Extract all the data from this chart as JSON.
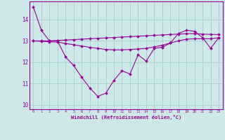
{
  "x": [
    0,
    1,
    2,
    3,
    4,
    5,
    6,
    7,
    8,
    9,
    10,
    11,
    12,
    13,
    14,
    15,
    16,
    17,
    18,
    19,
    20,
    21,
    22,
    23
  ],
  "line1": [
    14.6,
    13.5,
    13.0,
    13.0,
    12.25,
    11.85,
    11.3,
    10.8,
    10.4,
    10.55,
    11.15,
    11.6,
    11.45,
    12.35,
    12.05,
    12.65,
    12.7,
    12.9,
    13.35,
    13.5,
    13.45,
    13.15,
    12.65,
    13.15
  ],
  "line2": [
    13.0,
    13.0,
    13.0,
    13.02,
    13.04,
    13.06,
    13.08,
    13.1,
    13.12,
    13.14,
    13.16,
    13.18,
    13.2,
    13.22,
    13.24,
    13.26,
    13.28,
    13.3,
    13.32,
    13.34,
    13.34,
    13.32,
    13.3,
    13.3
  ],
  "line3": [
    13.0,
    12.98,
    12.96,
    12.94,
    12.88,
    12.82,
    12.76,
    12.7,
    12.65,
    12.6,
    12.58,
    12.58,
    12.6,
    12.62,
    12.65,
    12.72,
    12.8,
    12.9,
    13.0,
    13.08,
    13.1,
    13.1,
    13.1,
    13.15
  ],
  "line_color": "#990099",
  "bg_color": "#cce8e8",
  "grid_color": "#aacccc",
  "xlabel": "Windchill (Refroidissement éolien,°C)",
  "ylim": [
    9.8,
    14.85
  ],
  "xlim": [
    -0.5,
    23.5
  ],
  "yticks": [
    10,
    11,
    12,
    13,
    14
  ],
  "xticks": [
    0,
    1,
    2,
    3,
    4,
    5,
    6,
    7,
    8,
    9,
    10,
    11,
    12,
    13,
    14,
    15,
    16,
    17,
    18,
    19,
    20,
    21,
    22,
    23
  ]
}
